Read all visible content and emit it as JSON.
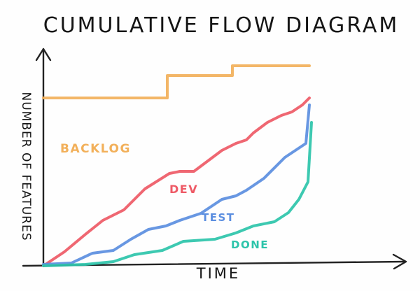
{
  "diagram": {
    "title": "Cumulative Flow Diagram",
    "y_axis_label": "Number of Features",
    "x_axis_label": "Time"
  },
  "chart_data": {
    "type": "line",
    "title": "Cumulative Flow Diagram",
    "xlabel": "Time",
    "ylabel": "Number of Features",
    "grid": false,
    "series": [
      {
        "name": "Backlog",
        "color": "#f2b05a",
        "points": [
          [
            0,
            240
          ],
          [
            177,
            240
          ],
          [
            177,
            272
          ],
          [
            270,
            272
          ],
          [
            270,
            286
          ],
          [
            380,
            286
          ]
        ]
      },
      {
        "name": "Dev",
        "color": "#ee5a66",
        "points": [
          [
            0,
            0
          ],
          [
            30,
            20
          ],
          [
            60,
            45
          ],
          [
            85,
            65
          ],
          [
            115,
            80
          ],
          [
            145,
            110
          ],
          [
            180,
            132
          ],
          [
            195,
            135
          ],
          [
            215,
            135
          ],
          [
            235,
            150
          ],
          [
            255,
            165
          ],
          [
            275,
            175
          ],
          [
            290,
            180
          ],
          [
            300,
            190
          ],
          [
            320,
            205
          ],
          [
            340,
            215
          ],
          [
            355,
            220
          ],
          [
            370,
            230
          ],
          [
            380,
            240
          ]
        ]
      },
      {
        "name": "Test",
        "color": "#5b8ee0",
        "points": [
          [
            0,
            2
          ],
          [
            40,
            4
          ],
          [
            70,
            18
          ],
          [
            100,
            22
          ],
          [
            125,
            38
          ],
          [
            150,
            52
          ],
          [
            175,
            57
          ],
          [
            195,
            65
          ],
          [
            225,
            75
          ],
          [
            255,
            95
          ],
          [
            275,
            100
          ],
          [
            290,
            108
          ],
          [
            315,
            125
          ],
          [
            345,
            155
          ],
          [
            375,
            175
          ],
          [
            380,
            230
          ]
        ]
      },
      {
        "name": "Done",
        "color": "#2cc4aa",
        "points": [
          [
            0,
            0
          ],
          [
            60,
            2
          ],
          [
            100,
            6
          ],
          [
            130,
            16
          ],
          [
            170,
            22
          ],
          [
            200,
            35
          ],
          [
            245,
            38
          ],
          [
            275,
            47
          ],
          [
            300,
            57
          ],
          [
            330,
            63
          ],
          [
            350,
            76
          ],
          [
            365,
            95
          ],
          [
            378,
            120
          ],
          [
            383,
            205
          ]
        ]
      }
    ]
  }
}
